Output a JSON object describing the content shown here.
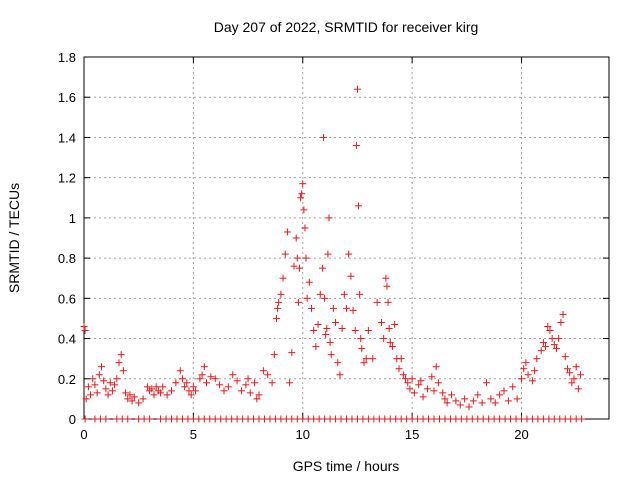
{
  "chart_data": {
    "type": "scatter",
    "title": "Day 207 of 2022, SRMTID for receiver kirg",
    "xlabel": "GPS time / hours",
    "ylabel": "SRMTID / TECUs",
    "xlim": [
      0,
      24
    ],
    "ylim": [
      0,
      1.8
    ],
    "xticks": [
      0,
      5,
      10,
      15,
      20
    ],
    "yticks": [
      0,
      0.2,
      0.4,
      0.6,
      0.8,
      1,
      1.2,
      1.4,
      1.6,
      1.8
    ],
    "xtick_labels": [
      "0",
      "5",
      "10",
      "15",
      "20"
    ],
    "ytick_labels": [
      "0",
      "0.2",
      "0.4",
      "0.6",
      "0.8",
      "1",
      "1.2",
      "1.4",
      "1.6",
      "1.8"
    ],
    "grid": true,
    "marker": "+",
    "series_color": "#e41a1c",
    "series": [
      {
        "name": "SRMTID",
        "points": [
          [
            0.0,
            0.46
          ],
          [
            0.05,
            0.44
          ],
          [
            0.1,
            0.1
          ],
          [
            0.2,
            0.16
          ],
          [
            0.3,
            0.12
          ],
          [
            0.4,
            0.2
          ],
          [
            0.5,
            0.17
          ],
          [
            0.6,
            0.13
          ],
          [
            0.7,
            0.22
          ],
          [
            0.8,
            0.26
          ],
          [
            0.9,
            0.19
          ],
          [
            1.0,
            0.15
          ],
          [
            1.1,
            0.12
          ],
          [
            1.2,
            0.18
          ],
          [
            1.3,
            0.14
          ],
          [
            1.4,
            0.17
          ],
          [
            1.5,
            0.2
          ],
          [
            1.6,
            0.28
          ],
          [
            1.7,
            0.32
          ],
          [
            1.8,
            0.24
          ],
          [
            1.9,
            0.13
          ],
          [
            2.0,
            0.1
          ],
          [
            2.1,
            0.12
          ],
          [
            2.2,
            0.09
          ],
          [
            2.3,
            0.11
          ],
          [
            2.5,
            0.08
          ],
          [
            2.7,
            0.1
          ],
          [
            2.9,
            0.16
          ],
          [
            3.0,
            0.14
          ],
          [
            3.1,
            0.15
          ],
          [
            3.2,
            0.12
          ],
          [
            3.3,
            0.16
          ],
          [
            3.4,
            0.14
          ],
          [
            3.5,
            0.13
          ],
          [
            3.6,
            0.16
          ],
          [
            3.8,
            0.12
          ],
          [
            4.0,
            0.14
          ],
          [
            4.2,
            0.18
          ],
          [
            4.4,
            0.24
          ],
          [
            4.5,
            0.2
          ],
          [
            4.6,
            0.16
          ],
          [
            4.7,
            0.18
          ],
          [
            4.8,
            0.14
          ],
          [
            4.9,
            0.12
          ],
          [
            5.0,
            0.16
          ],
          [
            5.1,
            0.14
          ],
          [
            5.3,
            0.2
          ],
          [
            5.4,
            0.22
          ],
          [
            5.5,
            0.26
          ],
          [
            5.6,
            0.18
          ],
          [
            5.8,
            0.21
          ],
          [
            6.0,
            0.2
          ],
          [
            6.2,
            0.17
          ],
          [
            6.4,
            0.14
          ],
          [
            6.6,
            0.16
          ],
          [
            6.8,
            0.22
          ],
          [
            7.0,
            0.19
          ],
          [
            7.2,
            0.14
          ],
          [
            7.4,
            0.17
          ],
          [
            7.5,
            0.2
          ],
          [
            7.6,
            0.13
          ],
          [
            7.8,
            0.18
          ],
          [
            7.9,
            0.1
          ],
          [
            8.0,
            0.12
          ],
          [
            8.2,
            0.24
          ],
          [
            8.4,
            0.22
          ],
          [
            8.6,
            0.18
          ],
          [
            8.7,
            0.32
          ],
          [
            8.8,
            0.5
          ],
          [
            8.85,
            0.55
          ],
          [
            8.9,
            0.58
          ],
          [
            9.0,
            0.62
          ],
          [
            9.1,
            0.7
          ],
          [
            9.2,
            0.82
          ],
          [
            9.3,
            0.93
          ],
          [
            9.4,
            0.18
          ],
          [
            9.5,
            0.33
          ],
          [
            9.6,
            0.76
          ],
          [
            9.7,
            0.9
          ],
          [
            9.75,
            0.8
          ],
          [
            9.8,
            0.58
          ],
          [
            9.85,
            0.75
          ],
          [
            9.9,
            1.1
          ],
          [
            9.95,
            1.12
          ],
          [
            10.0,
            1.17
          ],
          [
            10.05,
            1.04
          ],
          [
            10.1,
            0.95
          ],
          [
            10.15,
            0.8
          ],
          [
            10.2,
            0.6
          ],
          [
            10.3,
            0.68
          ],
          [
            10.4,
            0.55
          ],
          [
            10.5,
            0.44
          ],
          [
            10.6,
            0.36
          ],
          [
            10.7,
            0.47
          ],
          [
            10.8,
            0.62
          ],
          [
            10.9,
            0.75
          ],
          [
            10.95,
            1.4
          ],
          [
            11.0,
            0.6
          ],
          [
            11.05,
            0.42
          ],
          [
            11.1,
            0.45
          ],
          [
            11.15,
            0.82
          ],
          [
            11.2,
            1.0
          ],
          [
            11.25,
            0.38
          ],
          [
            11.3,
            0.32
          ],
          [
            11.4,
            0.55
          ],
          [
            11.5,
            0.48
          ],
          [
            11.6,
            0.28
          ],
          [
            11.7,
            0.22
          ],
          [
            11.8,
            0.45
          ],
          [
            11.9,
            0.62
          ],
          [
            12.0,
            0.55
          ],
          [
            12.1,
            0.82
          ],
          [
            12.2,
            0.71
          ],
          [
            12.3,
            0.54
          ],
          [
            12.4,
            0.44
          ],
          [
            12.45,
            1.36
          ],
          [
            12.5,
            1.64
          ],
          [
            12.55,
            1.06
          ],
          [
            12.6,
            0.62
          ],
          [
            12.65,
            0.4
          ],
          [
            12.7,
            0.35
          ],
          [
            12.8,
            0.28
          ],
          [
            12.9,
            0.3
          ],
          [
            13.0,
            0.44
          ],
          [
            13.2,
            0.3
          ],
          [
            13.4,
            0.58
          ],
          [
            13.6,
            0.48
          ],
          [
            13.7,
            0.4
          ],
          [
            13.8,
            0.7
          ],
          [
            13.85,
            0.66
          ],
          [
            13.9,
            0.58
          ],
          [
            13.95,
            0.45
          ],
          [
            14.0,
            0.38
          ],
          [
            14.1,
            0.36
          ],
          [
            14.2,
            0.47
          ],
          [
            14.3,
            0.3
          ],
          [
            14.4,
            0.25
          ],
          [
            14.5,
            0.3
          ],
          [
            14.6,
            0.22
          ],
          [
            14.7,
            0.2
          ],
          [
            14.8,
            0.18
          ],
          [
            14.9,
            0.15
          ],
          [
            15.0,
            0.2
          ],
          [
            15.1,
            0.13
          ],
          [
            15.3,
            0.17
          ],
          [
            15.4,
            0.19
          ],
          [
            15.5,
            0.11
          ],
          [
            15.7,
            0.15
          ],
          [
            15.9,
            0.21
          ],
          [
            16.0,
            0.14
          ],
          [
            16.1,
            0.26
          ],
          [
            16.2,
            0.18
          ],
          [
            16.4,
            0.13
          ],
          [
            16.5,
            0.1
          ],
          [
            16.6,
            0.08
          ],
          [
            16.8,
            0.12
          ],
          [
            17.0,
            0.09
          ],
          [
            17.2,
            0.07
          ],
          [
            17.4,
            0.1
          ],
          [
            17.6,
            0.06
          ],
          [
            17.8,
            0.09
          ],
          [
            18.0,
            0.12
          ],
          [
            18.2,
            0.08
          ],
          [
            18.4,
            0.18
          ],
          [
            18.6,
            0.1
          ],
          [
            18.8,
            0.08
          ],
          [
            19.0,
            0.12
          ],
          [
            19.2,
            0.14
          ],
          [
            19.4,
            0.09
          ],
          [
            19.6,
            0.16
          ],
          [
            19.8,
            0.1
          ],
          [
            20.0,
            0.2
          ],
          [
            20.1,
            0.25
          ],
          [
            20.2,
            0.28
          ],
          [
            20.3,
            0.22
          ],
          [
            20.5,
            0.19
          ],
          [
            20.6,
            0.24
          ],
          [
            20.7,
            0.3
          ],
          [
            20.9,
            0.34
          ],
          [
            21.0,
            0.38
          ],
          [
            21.1,
            0.36
          ],
          [
            21.2,
            0.46
          ],
          [
            21.3,
            0.44
          ],
          [
            21.4,
            0.4
          ],
          [
            21.5,
            0.37
          ],
          [
            21.6,
            0.35
          ],
          [
            21.7,
            0.4
          ],
          [
            21.8,
            0.48
          ],
          [
            21.9,
            0.52
          ],
          [
            22.0,
            0.31
          ],
          [
            22.1,
            0.25
          ],
          [
            22.2,
            0.23
          ],
          [
            22.3,
            0.18
          ],
          [
            22.4,
            0.2
          ],
          [
            22.5,
            0.26
          ],
          [
            22.6,
            0.15
          ],
          [
            22.7,
            0.22
          ]
        ],
        "zero_points": [
          0.05,
          0.5,
          0.75,
          1.0,
          1.5,
          1.75,
          2.0,
          2.5,
          2.75,
          3.0,
          3.5,
          3.75,
          4.0,
          4.25,
          4.5,
          4.75,
          5.0,
          5.25,
          5.5,
          5.75,
          6.0,
          6.25,
          6.5,
          6.75,
          7.0,
          7.25,
          7.5,
          7.75,
          8.0,
          8.25,
          8.5,
          8.75,
          9.0,
          9.25,
          9.5,
          9.75,
          10.0,
          10.25,
          10.5,
          10.75,
          11.0,
          11.25,
          11.5,
          11.75,
          12.0,
          12.25,
          12.5,
          12.75,
          13.0,
          13.25,
          13.5,
          13.75,
          14.0,
          14.25,
          14.5,
          14.75,
          15.0,
          15.25,
          15.5,
          15.75,
          16.0,
          16.25,
          16.5,
          16.75,
          17.0,
          17.25,
          17.5,
          17.75,
          18.0,
          18.25,
          18.5,
          18.75,
          19.0,
          19.25,
          19.5,
          19.75,
          20.0,
          20.25,
          20.5,
          20.75,
          21.0,
          21.25,
          21.5,
          21.75,
          22.0,
          22.25,
          22.5,
          22.75
        ]
      }
    ]
  }
}
